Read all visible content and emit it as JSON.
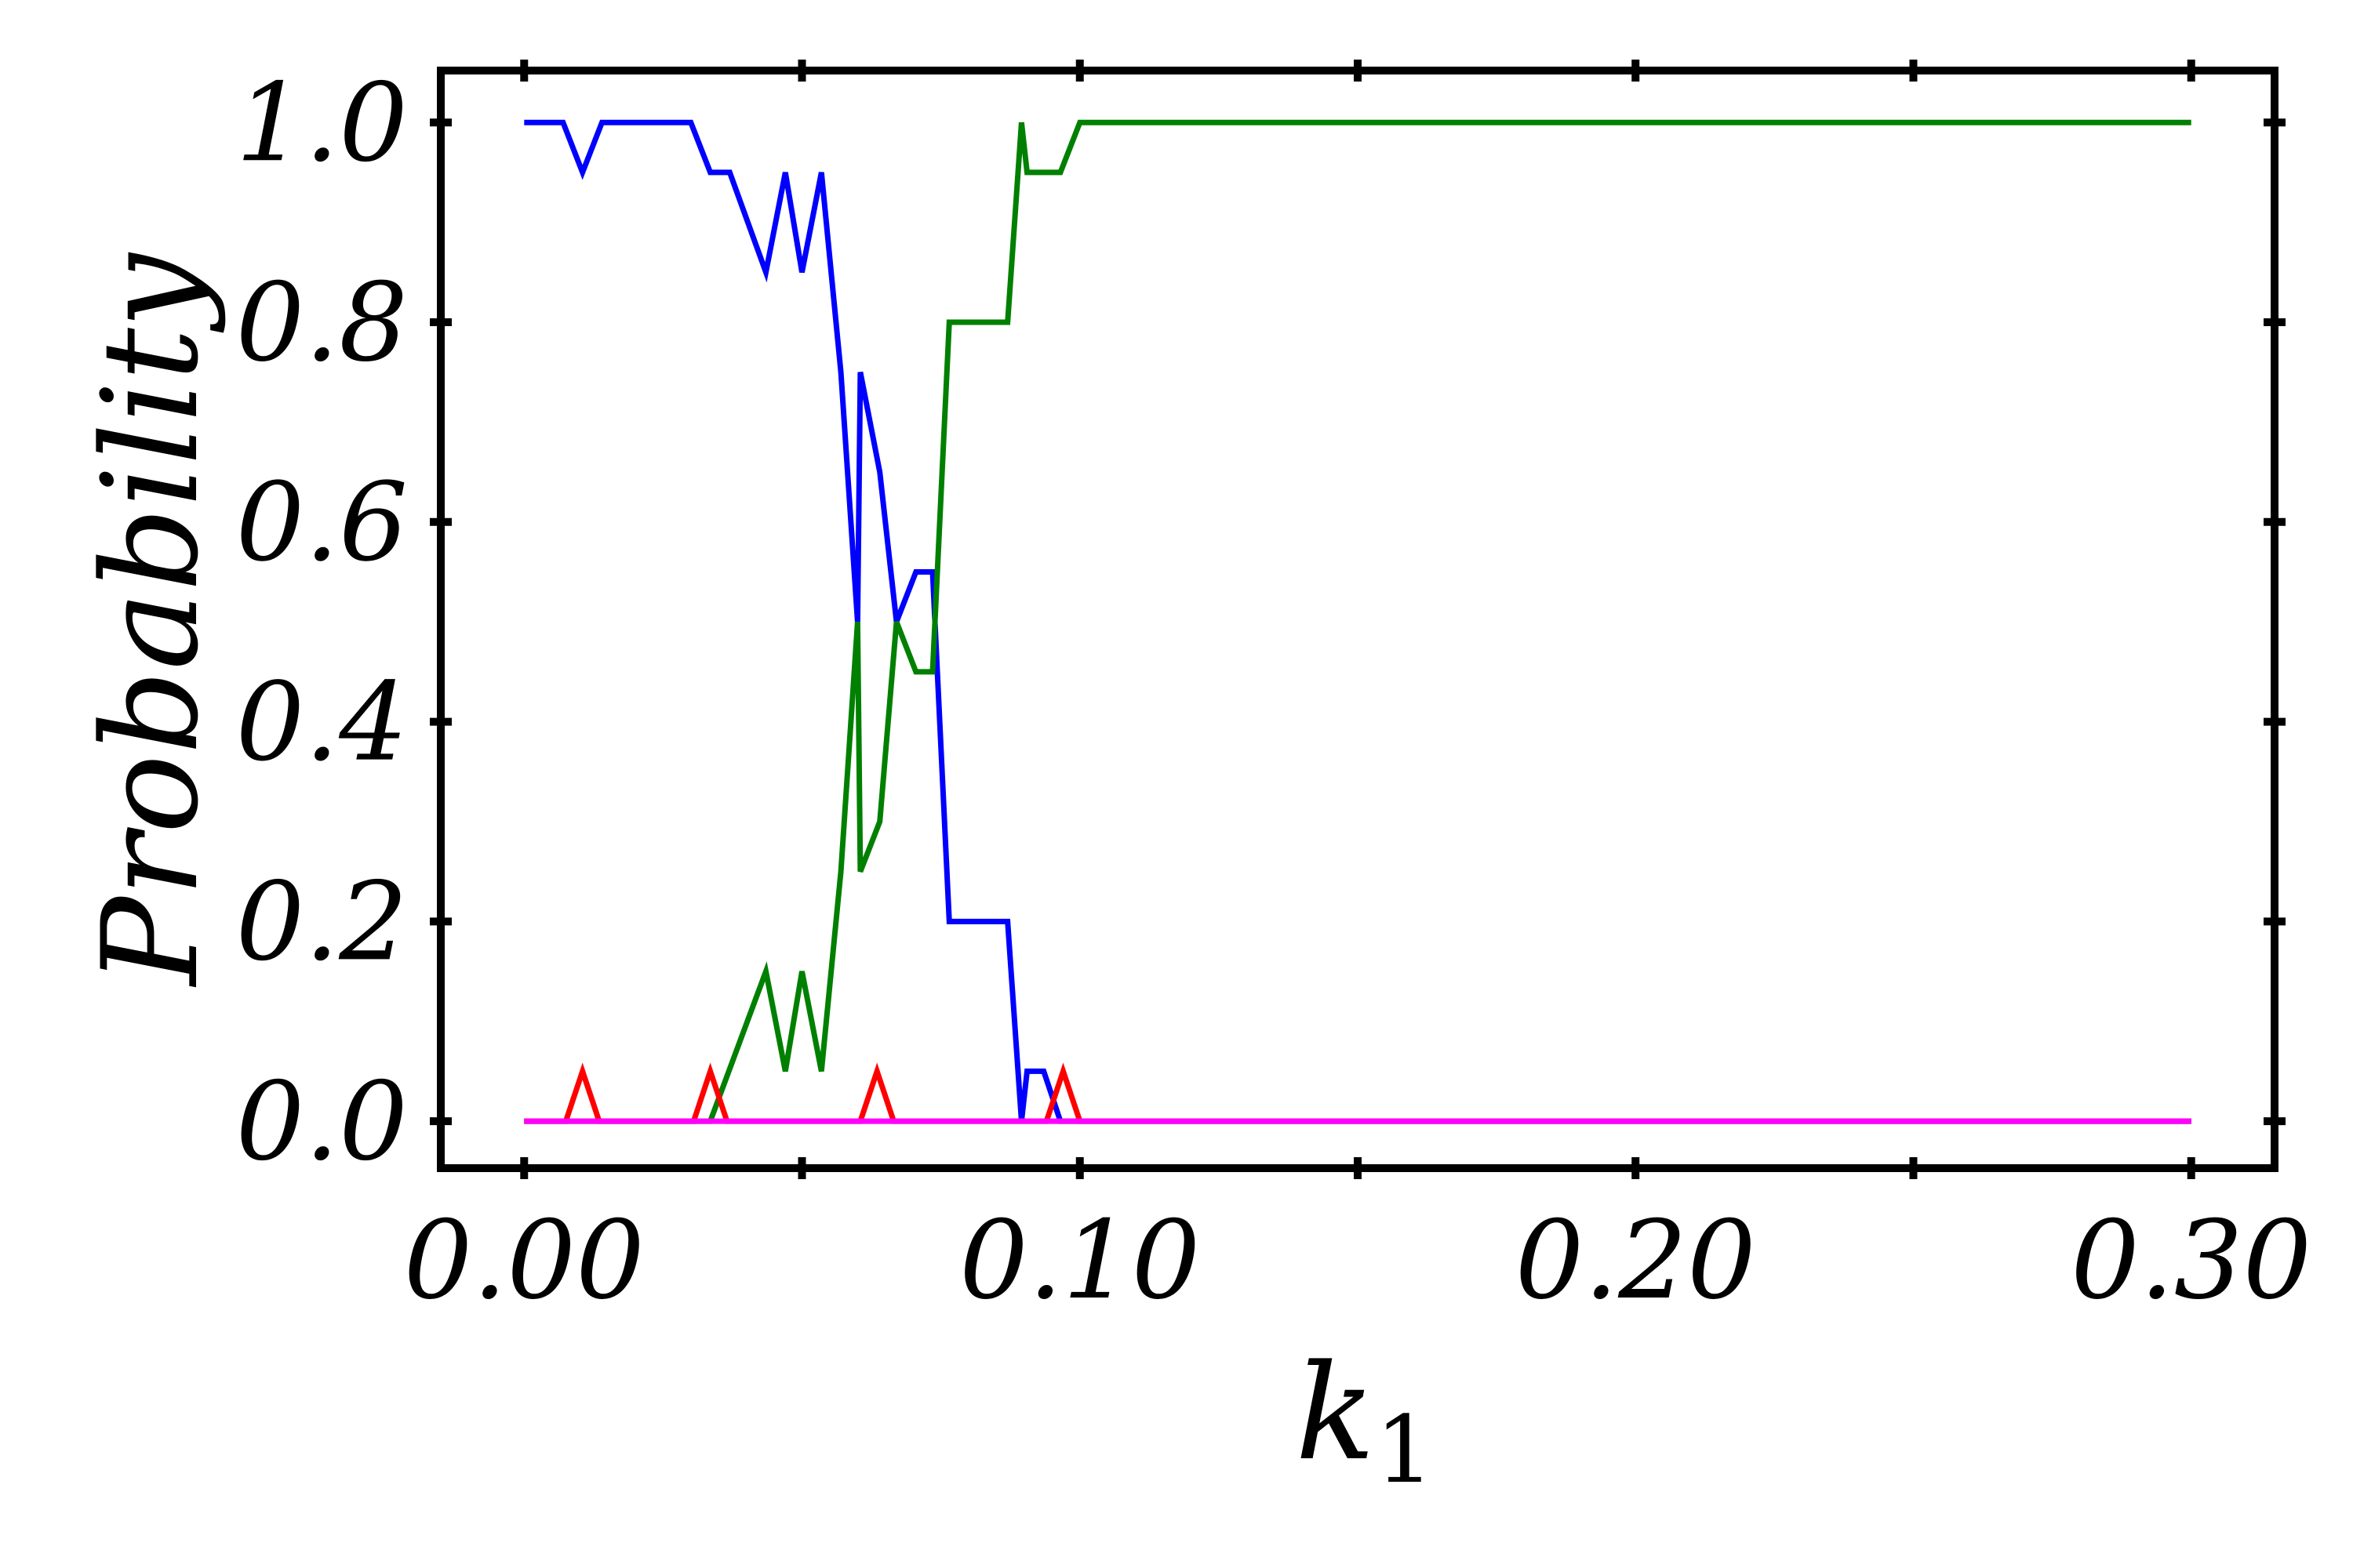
{
  "chart_data": {
    "type": "line",
    "xlabel_main": "k",
    "xlabel_sub": "1",
    "ylabel": "Probability",
    "xlim": [
      -0.015,
      0.315
    ],
    "ylim": [
      -0.047,
      1.052
    ],
    "x_ticks": [
      0.0,
      0.05,
      0.1,
      0.15,
      0.2,
      0.25,
      0.3
    ],
    "x_tick_labels": [
      {
        "value": 0.0,
        "label": "0.00"
      },
      {
        "value": 0.1,
        "label": "0.10"
      },
      {
        "value": 0.2,
        "label": "0.20"
      },
      {
        "value": 0.3,
        "label": "0.30"
      }
    ],
    "y_ticks": [
      {
        "value": 0.0,
        "label": "0.0"
      },
      {
        "value": 0.2,
        "label": "0.2"
      },
      {
        "value": 0.4,
        "label": "0.4"
      },
      {
        "value": 0.6,
        "label": "0.6"
      },
      {
        "value": 0.8,
        "label": "0.8"
      },
      {
        "value": 1.0,
        "label": "1.0"
      }
    ],
    "grid": false,
    "series": [
      {
        "color": "#0000ff",
        "points": [
          [
            0.0,
            1.0
          ],
          [
            0.007,
            1.0
          ],
          [
            0.0105,
            0.95
          ],
          [
            0.014,
            1.0
          ],
          [
            0.03,
            1.0
          ],
          [
            0.0335,
            0.95
          ],
          [
            0.037,
            0.95
          ],
          [
            0.0435,
            0.85
          ],
          [
            0.047,
            0.95
          ],
          [
            0.05,
            0.85
          ],
          [
            0.0535,
            0.95
          ],
          [
            0.057,
            0.75
          ],
          [
            0.06,
            0.5
          ],
          [
            0.0605,
            0.75
          ],
          [
            0.064,
            0.65
          ],
          [
            0.067,
            0.5
          ],
          [
            0.0705,
            0.55
          ],
          [
            0.0735,
            0.55
          ],
          [
            0.0765,
            0.2
          ],
          [
            0.087,
            0.2
          ],
          [
            0.0895,
            0.0
          ],
          [
            0.0905,
            0.05
          ],
          [
            0.0935,
            0.05
          ],
          [
            0.0965,
            0.0
          ],
          [
            0.3,
            0.0
          ]
        ]
      },
      {
        "color": "#008000",
        "points": [
          [
            0.0,
            0.0
          ],
          [
            0.0335,
            0.0
          ],
          [
            0.0435,
            0.15
          ],
          [
            0.047,
            0.05
          ],
          [
            0.05,
            0.15
          ],
          [
            0.0535,
            0.05
          ],
          [
            0.057,
            0.25
          ],
          [
            0.06,
            0.5
          ],
          [
            0.0605,
            0.25
          ],
          [
            0.064,
            0.3
          ],
          [
            0.067,
            0.5
          ],
          [
            0.0705,
            0.45
          ],
          [
            0.0735,
            0.45
          ],
          [
            0.0765,
            0.8
          ],
          [
            0.087,
            0.8
          ],
          [
            0.0895,
            1.0
          ],
          [
            0.0905,
            0.95
          ],
          [
            0.0965,
            0.95
          ],
          [
            0.1,
            1.0
          ],
          [
            0.3,
            1.0
          ]
        ]
      },
      {
        "color": "#ff0000",
        "points": [
          [
            0.0,
            0.0
          ],
          [
            0.0075,
            0.0
          ],
          [
            0.0105,
            0.05
          ],
          [
            0.0135,
            0.0
          ],
          [
            0.0305,
            0.0
          ],
          [
            0.0335,
            0.05
          ],
          [
            0.0365,
            0.0
          ],
          [
            0.0605,
            0.0
          ],
          [
            0.0635,
            0.05
          ],
          [
            0.0665,
            0.0
          ],
          [
            0.094,
            0.0
          ],
          [
            0.097,
            0.05
          ],
          [
            0.1,
            0.0
          ],
          [
            0.3,
            0.0
          ]
        ]
      },
      {
        "color": "#ff00ff",
        "points": [
          [
            0.0,
            0.0
          ],
          [
            0.3,
            0.0
          ]
        ]
      }
    ]
  }
}
